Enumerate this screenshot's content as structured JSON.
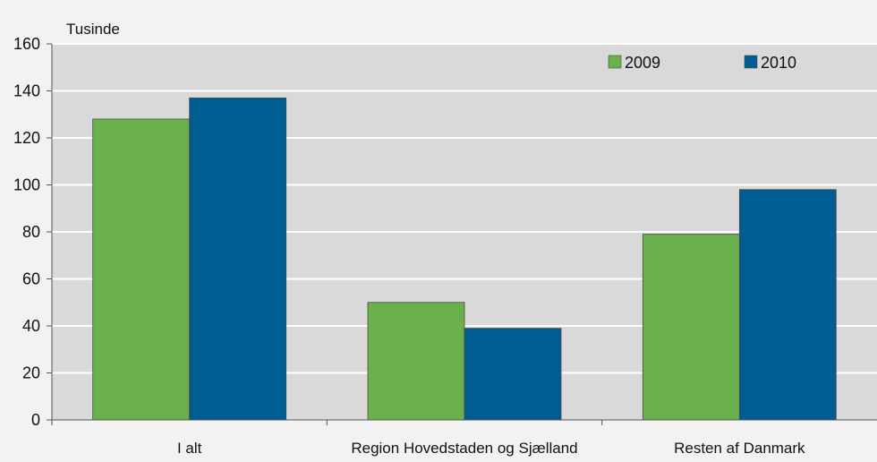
{
  "chart_data": {
    "type": "bar",
    "unit_label": "Tusinde",
    "categories": [
      "I alt",
      "Region Hovedstaden og Sjælland",
      "Resten af Danmark"
    ],
    "series": [
      {
        "name": "2009",
        "color": "#6ab04c",
        "values": [
          128,
          50,
          79
        ]
      },
      {
        "name": "2010",
        "color": "#005d91",
        "values": [
          137,
          39,
          98
        ]
      }
    ],
    "y_ticks": [
      0,
      20,
      40,
      60,
      80,
      100,
      120,
      140,
      160
    ],
    "ylim": [
      0,
      160
    ],
    "grid": true,
    "legend_position": "top-right",
    "plot_background": "#d9d9d9"
  }
}
